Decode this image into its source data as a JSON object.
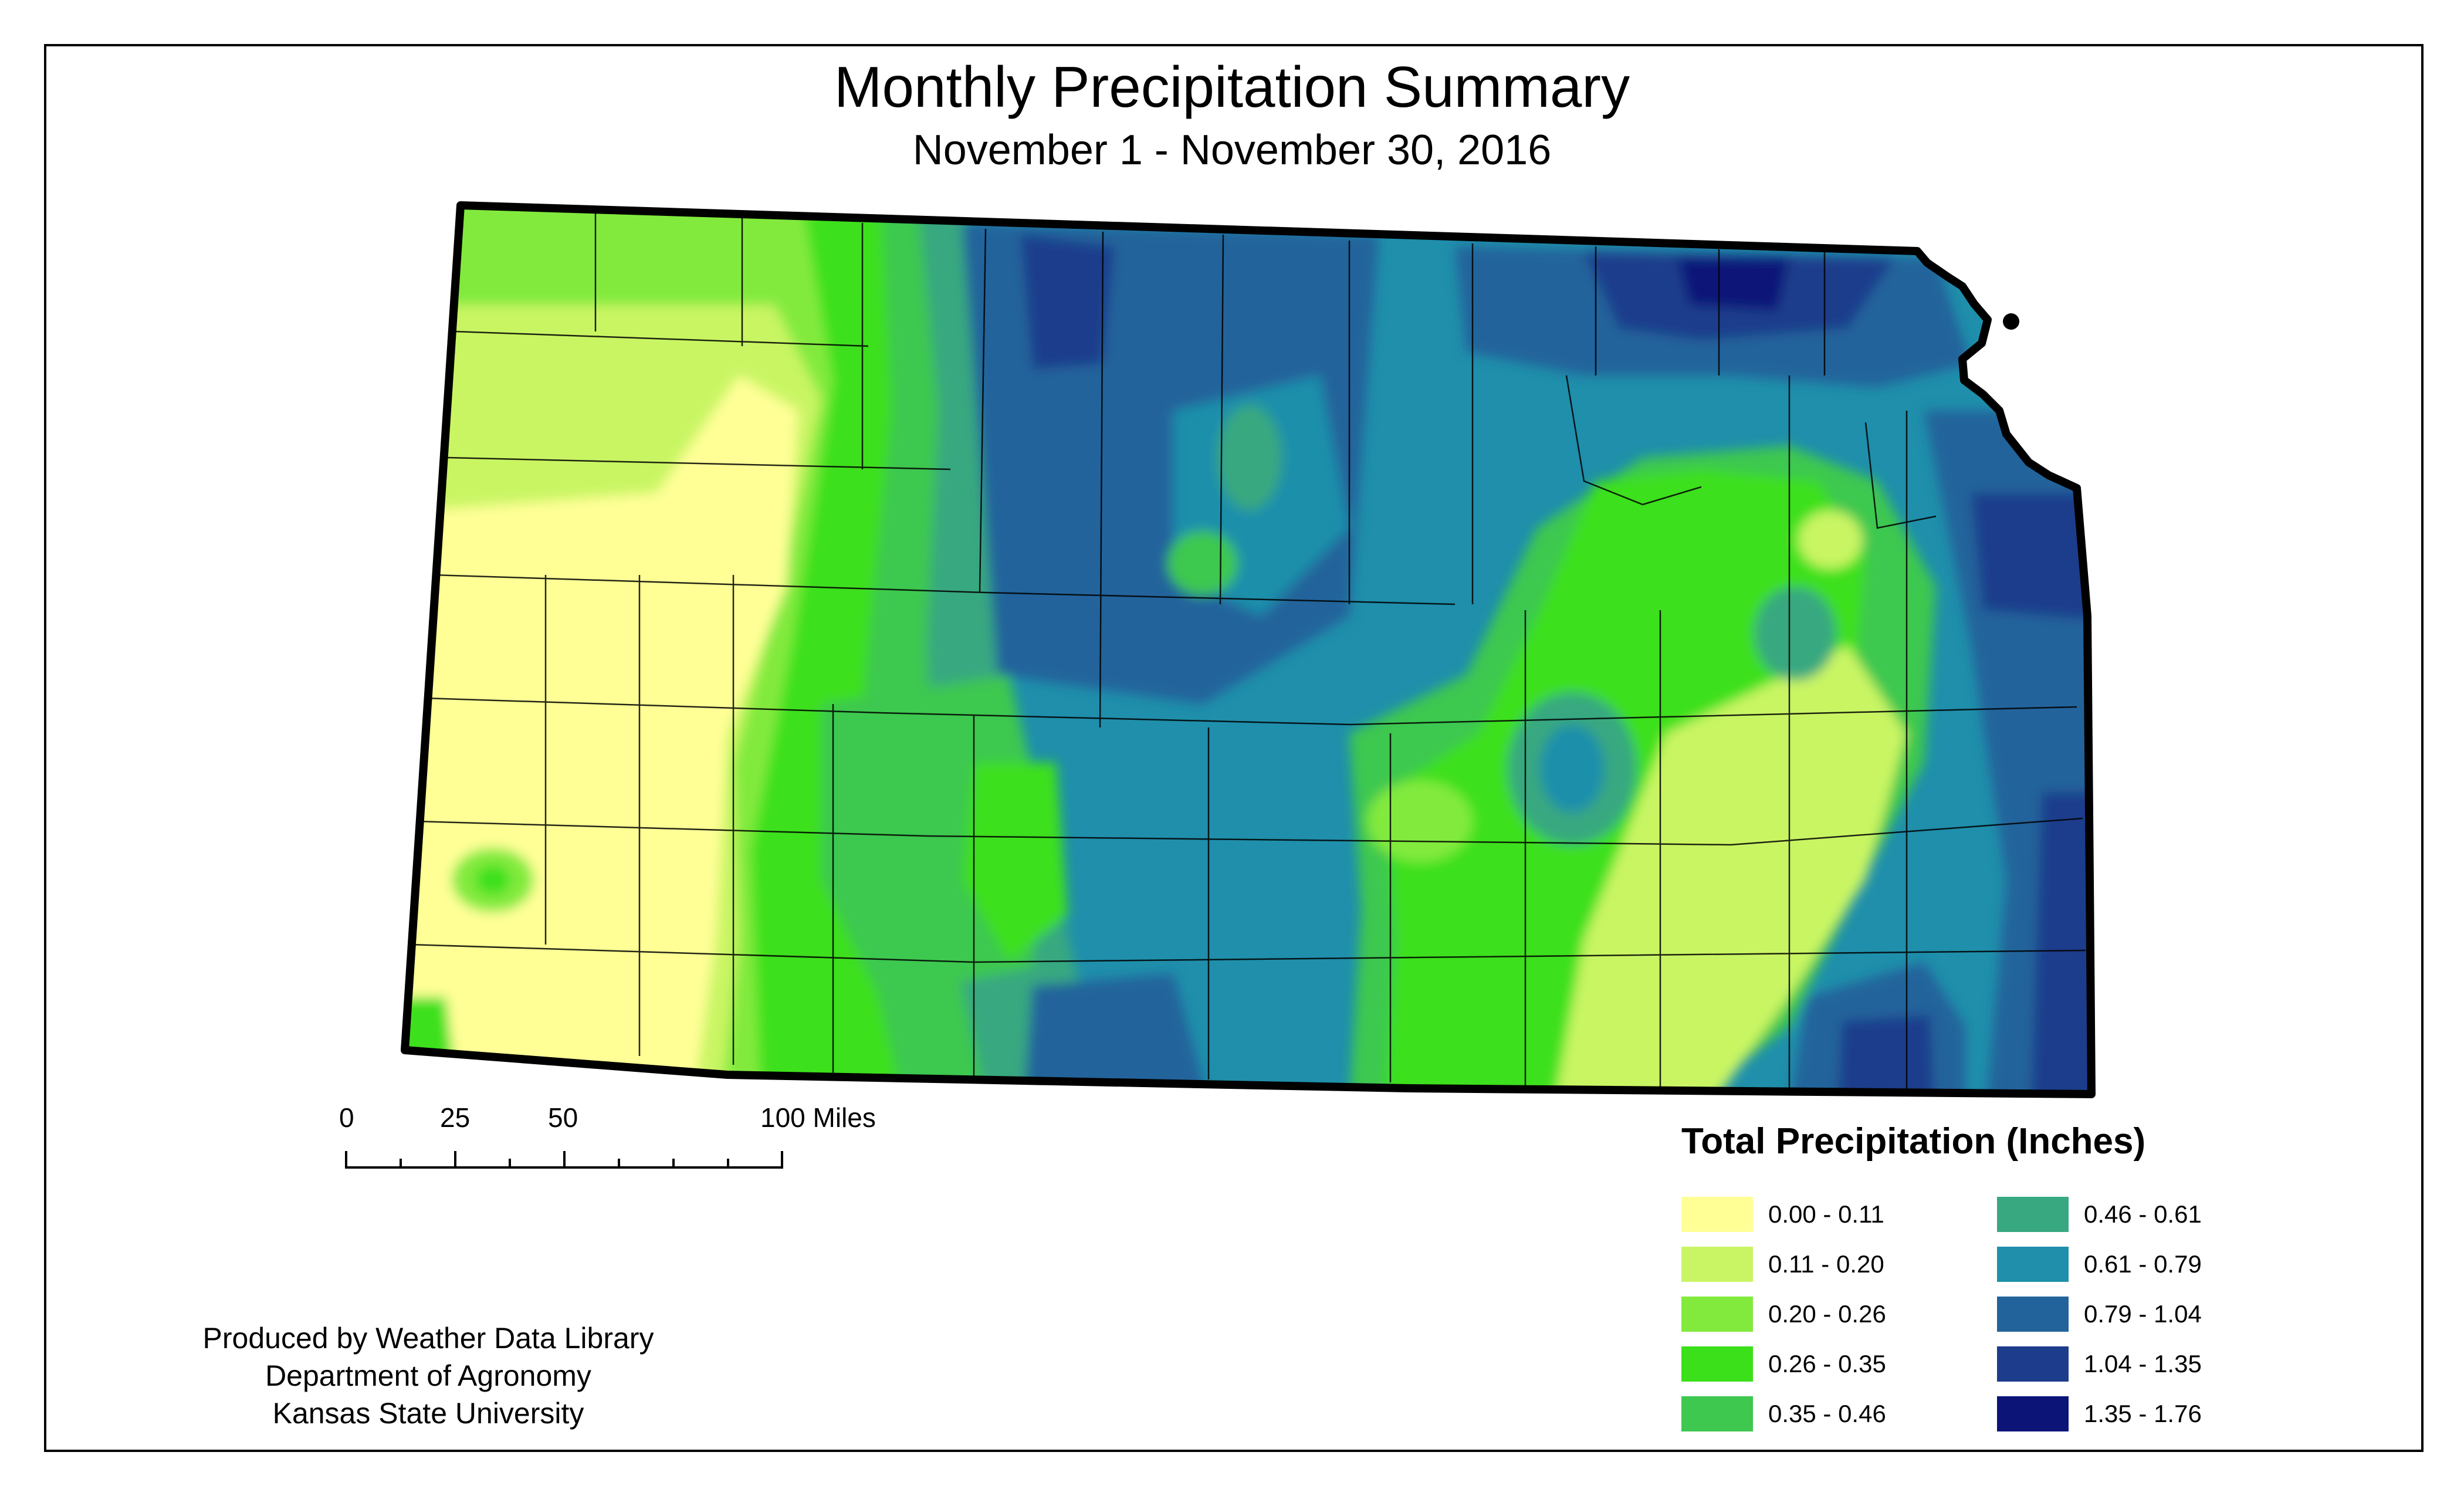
{
  "title": "Monthly Precipitation Summary",
  "subtitle": "November 1 - November 30, 2016",
  "scale_bar": {
    "labels": [
      "0",
      "25",
      "50",
      "100 Miles"
    ]
  },
  "legend": {
    "title": "Total Precipitation (Inches)",
    "items": [
      {
        "label": "0.00 - 0.11",
        "color": "#ffff96"
      },
      {
        "label": "0.11 - 0.20",
        "color": "#c9f564"
      },
      {
        "label": "0.20 - 0.26",
        "color": "#82ea3c"
      },
      {
        "label": "0.26 - 0.35",
        "color": "#3ce01a"
      },
      {
        "label": "0.35 - 0.46",
        "color": "#3ec850"
      },
      {
        "label": "0.46 - 0.61",
        "color": "#38a880"
      },
      {
        "label": "0.61 - 0.79",
        "color": "#1f8fab"
      },
      {
        "label": "0.79 - 1.04",
        "color": "#23639b"
      },
      {
        "label": "1.04 - 1.35",
        "color": "#1e3c8c"
      },
      {
        "label": "1.35 - 1.76",
        "color": "#0c1478"
      }
    ]
  },
  "credits": {
    "line1": "Produced by Weather Data Library",
    "line2": "Department of Agronomy",
    "line3": "Kansas State University"
  },
  "map": {
    "region": "Kansas",
    "base_color": "#1f8fab",
    "outline_color": "#000000"
  }
}
